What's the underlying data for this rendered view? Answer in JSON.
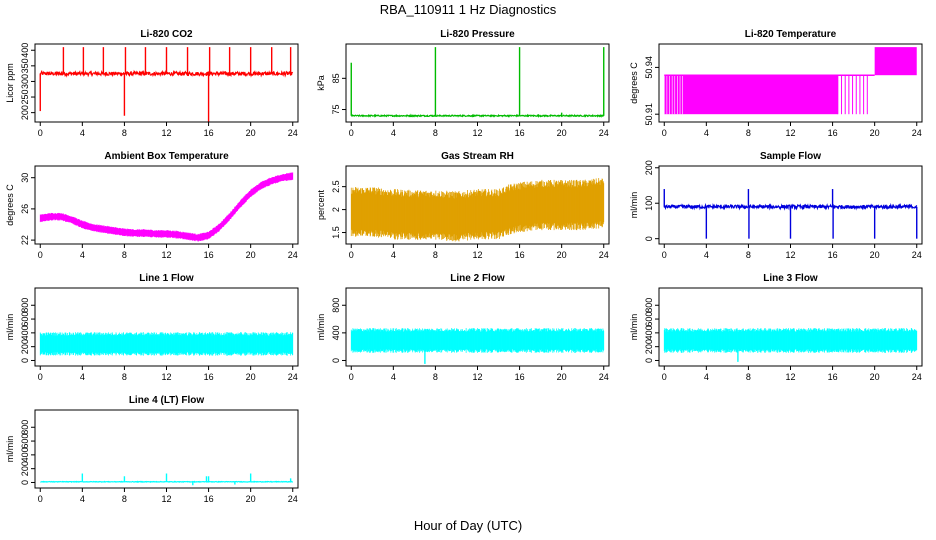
{
  "figure_title": "RBA_110911  1 Hz Diagnostics",
  "x_axis_title": "Hour of Day (UTC)",
  "chart_data": [
    {
      "type": "line",
      "title": "Li-820 CO2",
      "ylabel": "Licor ppm",
      "color": "#ff0000",
      "xlim": [
        -0.5,
        24.5
      ],
      "ylim": [
        170,
        420
      ],
      "yticks": [
        200,
        250,
        300,
        350,
        400
      ],
      "xticks": [
        0,
        4,
        8,
        12,
        16,
        20,
        24
      ],
      "baseline": 325,
      "noise": 6,
      "spikes": [
        [
          0.0,
          205
        ],
        [
          2.2,
          410
        ],
        [
          4.1,
          410
        ],
        [
          6.0,
          410
        ],
        [
          8.0,
          190
        ],
        [
          8.1,
          410
        ],
        [
          10.0,
          410
        ],
        [
          12.0,
          410
        ],
        [
          14.0,
          410
        ],
        [
          16.0,
          165
        ],
        [
          16.1,
          410
        ],
        [
          18.0,
          410
        ],
        [
          20.0,
          410
        ],
        [
          22.0,
          410
        ],
        [
          23.8,
          410
        ]
      ]
    },
    {
      "type": "line",
      "title": "Li-820 Pressure",
      "ylabel": "kPa",
      "color": "#00bb00",
      "xlim": [
        -0.5,
        24.5
      ],
      "ylim": [
        71,
        96
      ],
      "yticks": [
        75,
        85
      ],
      "xticks": [
        0,
        4,
        8,
        12,
        16,
        20,
        24
      ],
      "baseline": 73,
      "noise": 0.2,
      "spikes": [
        [
          0.0,
          90
        ],
        [
          8.0,
          95
        ],
        [
          16.0,
          95
        ],
        [
          20.0,
          74
        ],
        [
          24.0,
          95
        ]
      ]
    },
    {
      "type": "step-band",
      "title": "Li-820 Temperature",
      "ylabel": "degrees C",
      "color": "#ff00ff",
      "xlim": [
        -0.5,
        24.5
      ],
      "ylim": [
        50.905,
        50.955
      ],
      "yticks": [
        50.91,
        50.94
      ],
      "xticks": [
        0,
        4,
        8,
        12,
        16,
        20,
        24
      ],
      "low": 50.91,
      "mid": 50.935,
      "high": 50.95,
      "dense_low_mid": [
        0.0,
        16.5
      ],
      "sparse_until": 19.5,
      "high_from": 20.0
    },
    {
      "type": "band",
      "title": "Ambient Box Temperature",
      "ylabel": "degrees C",
      "color": "#ff00ff",
      "xlim": [
        -0.5,
        24.5
      ],
      "ylim": [
        21.5,
        31.5
      ],
      "yticks": [
        22,
        26,
        30
      ],
      "xticks": [
        0,
        4,
        8,
        12,
        16,
        20,
        24
      ],
      "x": [
        0,
        1,
        2,
        3,
        4,
        5,
        6,
        7,
        8,
        9,
        10,
        11,
        12,
        13,
        14,
        15,
        16,
        17,
        18,
        19,
        20,
        21,
        22,
        23,
        24
      ],
      "y": [
        24.8,
        25.0,
        25.0,
        24.6,
        24.0,
        23.6,
        23.4,
        23.2,
        23.0,
        22.9,
        22.9,
        22.8,
        22.8,
        22.7,
        22.5,
        22.3,
        22.6,
        23.6,
        25.0,
        26.6,
        28.0,
        29.0,
        29.6,
        30.0,
        30.2
      ],
      "halfwidth": 0.5
    },
    {
      "type": "band",
      "title": "Gas Stream RH",
      "ylabel": "percent",
      "color": "#e0a000",
      "xlim": [
        -0.5,
        24.5
      ],
      "ylim": [
        1.25,
        2.95
      ],
      "yticks": [
        1.5,
        2.0,
        2.5
      ],
      "xticks": [
        0,
        4,
        8,
        12,
        16,
        20,
        24
      ],
      "x": [
        0,
        2,
        4,
        6,
        8,
        10,
        12,
        14,
        15,
        16,
        18,
        20,
        22,
        24
      ],
      "y": [
        1.95,
        1.95,
        1.9,
        1.88,
        1.88,
        1.85,
        1.9,
        1.9,
        2.0,
        2.05,
        2.1,
        2.1,
        2.1,
        2.15
      ],
      "halfwidth": 0.55
    },
    {
      "type": "line",
      "title": "Sample Flow",
      "ylabel": "ml/min",
      "color": "#0000dd",
      "xlim": [
        -0.5,
        24.5
      ],
      "ylim": [
        -15,
        205
      ],
      "yticks": [
        0,
        100,
        200
      ],
      "xticks": [
        0,
        4,
        8,
        12,
        16,
        20,
        24
      ],
      "baseline": 90,
      "noise": 5,
      "spikes": [
        [
          0.0,
          140
        ],
        [
          4.0,
          0
        ],
        [
          8.0,
          140
        ],
        [
          8.05,
          0
        ],
        [
          12.0,
          0
        ],
        [
          16.0,
          140
        ],
        [
          16.05,
          0
        ],
        [
          20.0,
          0
        ],
        [
          24.0,
          0
        ]
      ]
    },
    {
      "type": "band",
      "title": "Line 1 Flow",
      "ylabel": "ml/min",
      "color": "#00ffff",
      "xlim": [
        -0.5,
        24.5
      ],
      "ylim": [
        -80,
        1050
      ],
      "yticks": [
        0,
        200,
        400,
        600,
        800
      ],
      "xticks": [
        0,
        4,
        8,
        12,
        16,
        20,
        24
      ],
      "x": [
        0,
        24
      ],
      "y": [
        240,
        240
      ],
      "halfwidth": 170
    },
    {
      "type": "band",
      "title": "Line 2 Flow",
      "ylabel": "ml/min",
      "color": "#00ffff",
      "xlim": [
        -0.5,
        24.5
      ],
      "ylim": [
        -80,
        1050
      ],
      "yticks": [
        0,
        400,
        800
      ],
      "xticks": [
        0,
        4,
        8,
        12,
        16,
        20,
        24
      ],
      "x": [
        0,
        24
      ],
      "y": [
        290,
        290
      ],
      "halfwidth": 180,
      "dips": [
        [
          7.0,
          -50
        ]
      ]
    },
    {
      "type": "band",
      "title": "Line 3 Flow",
      "ylabel": "ml/min",
      "color": "#00ffff",
      "xlim": [
        -0.5,
        24.5
      ],
      "ylim": [
        -80,
        1050
      ],
      "yticks": [
        0,
        200,
        400,
        600,
        800
      ],
      "xticks": [
        0,
        4,
        8,
        12,
        16,
        20,
        24
      ],
      "x": [
        0,
        24
      ],
      "y": [
        290,
        290
      ],
      "halfwidth": 180,
      "dips": [
        [
          7.0,
          -20
        ]
      ]
    },
    {
      "type": "line",
      "title": "Line 4 (LT) Flow",
      "ylabel": "ml/min",
      "color": "#00ffff",
      "xlim": [
        -0.5,
        24.5
      ],
      "ylim": [
        -80,
        1050
      ],
      "yticks": [
        0,
        200,
        400,
        600,
        800
      ],
      "xticks": [
        0,
        4,
        8,
        12,
        16,
        20,
        24
      ],
      "baseline": 10,
      "noise": 4,
      "spikes": [
        [
          4.0,
          130
        ],
        [
          8.0,
          90
        ],
        [
          12.0,
          130
        ],
        [
          14.5,
          -40
        ],
        [
          15.8,
          90
        ],
        [
          16.0,
          90
        ],
        [
          18.5,
          -30
        ],
        [
          20.0,
          130
        ],
        [
          23.8,
          60
        ]
      ]
    }
  ]
}
